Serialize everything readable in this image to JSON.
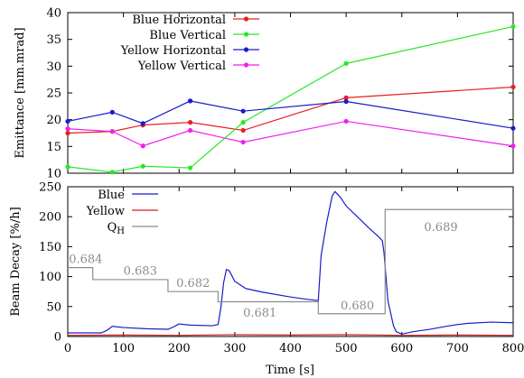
{
  "chart_data": [
    {
      "type": "line",
      "ylabel": "Emittance [mm.mrad]",
      "ylim": [
        10,
        40
      ],
      "yticks": [
        10,
        15,
        20,
        25,
        30,
        35,
        40
      ],
      "xlim": [
        0,
        800
      ],
      "legend": "top-left",
      "series": [
        {
          "name": "Blue Horizontal",
          "color": "#e8201e",
          "x": [
            0,
            80,
            135,
            220,
            315,
            500,
            800
          ],
          "y": [
            17.5,
            17.8,
            19,
            19.5,
            18,
            24.1,
            26.1
          ]
        },
        {
          "name": "Blue Vertical",
          "color": "#27e827",
          "x": [
            0,
            80,
            135,
            220,
            315,
            500,
            800
          ],
          "y": [
            11.2,
            10.2,
            11.3,
            11,
            19.5,
            30.5,
            37.4
          ]
        },
        {
          "name": "Yellow Horizontal",
          "color": "#1a1acc",
          "x": [
            0,
            80,
            135,
            220,
            315,
            500,
            800
          ],
          "y": [
            19.7,
            21.4,
            19.3,
            23.5,
            21.6,
            23.4,
            18.4
          ]
        },
        {
          "name": "Yellow Vertical",
          "color": "#f01ef0",
          "x": [
            0,
            80,
            135,
            220,
            315,
            500,
            800
          ],
          "y": [
            18.3,
            17.8,
            15.1,
            18,
            15.8,
            19.7,
            15.1
          ]
        }
      ]
    },
    {
      "type": "line",
      "xlabel": "Time [s]",
      "ylabel": "Beam Decay [%/h]",
      "xlim": [
        0,
        800
      ],
      "ylim": [
        0,
        250
      ],
      "xticks": [
        0,
        100,
        200,
        300,
        400,
        500,
        600,
        700,
        800
      ],
      "yticks": [
        0,
        50,
        100,
        150,
        200,
        250
      ],
      "legend": "top-left",
      "series": [
        {
          "name": "Blue",
          "color": "#1a1acc",
          "x": [
            0,
            60,
            70,
            80,
            100,
            140,
            180,
            190,
            200,
            220,
            260,
            270,
            275,
            280,
            285,
            290,
            300,
            320,
            350,
            400,
            430,
            450,
            455,
            465,
            475,
            480,
            490,
            500,
            520,
            540,
            560,
            565,
            568,
            575,
            585,
            590,
            600,
            620,
            650,
            680,
            700,
            720,
            760,
            800
          ],
          "y": [
            6,
            6,
            10,
            17,
            15,
            13,
            12,
            16,
            21,
            19,
            18,
            20,
            48,
            90,
            112,
            110,
            92,
            80,
            74,
            66,
            62,
            60,
            135,
            190,
            235,
            242,
            232,
            218,
            200,
            182,
            165,
            160,
            140,
            60,
            18,
            8,
            4,
            8,
            12,
            17,
            20,
            22,
            24,
            23
          ]
        },
        {
          "name": "Yellow",
          "color": "#cc2020",
          "x": [
            0,
            100,
            200,
            300,
            400,
            500,
            600,
            700,
            800
          ],
          "y": [
            2,
            2.5,
            2,
            3,
            2.5,
            3,
            2,
            2.5,
            2
          ]
        },
        {
          "name": "Q_H",
          "color": "#8c8c8c",
          "x": [
            0,
            45,
            45,
            180,
            180,
            270,
            270,
            450,
            450,
            570,
            570,
            800
          ],
          "y": [
            115,
            115,
            95,
            95,
            75,
            75,
            58,
            58,
            38,
            38,
            212,
            212
          ]
        }
      ],
      "annotations": [
        {
          "text": "0.684",
          "x": 2,
          "y": 123
        },
        {
          "text": "0.683",
          "x": 100,
          "y": 103
        },
        {
          "text": "0.682",
          "x": 195,
          "y": 83
        },
        {
          "text": "0.681",
          "x": 315,
          "y": 33
        },
        {
          "text": "0.680",
          "x": 490,
          "y": 45
        },
        {
          "text": "0.689",
          "x": 640,
          "y": 176
        }
      ]
    }
  ],
  "legend_labels": {
    "blue_horizontal": "Blue Horizontal",
    "blue_vertical": "Blue Vertical",
    "yellow_horizontal": "Yellow Horizontal",
    "yellow_vertical": "Yellow Vertical",
    "blue": "Blue",
    "yellow": "Yellow",
    "q_main": "Q",
    "q_sub": "H"
  }
}
